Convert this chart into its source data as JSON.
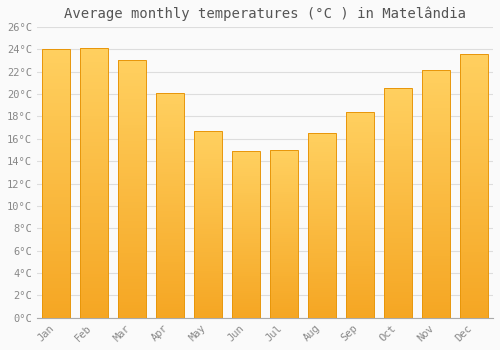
{
  "title": "Average monthly temperatures (°C ) in Matelândia",
  "months": [
    "Jan",
    "Feb",
    "Mar",
    "Apr",
    "May",
    "Jun",
    "Jul",
    "Aug",
    "Sep",
    "Oct",
    "Nov",
    "Dec"
  ],
  "values": [
    24.0,
    24.1,
    23.0,
    20.1,
    16.7,
    14.9,
    15.0,
    16.5,
    18.4,
    20.5,
    22.1,
    23.6
  ],
  "bar_color_bottom": "#F5A623",
  "bar_color_top": "#FFD060",
  "bar_edge_color": "#E8960A",
  "ylim": [
    0,
    26
  ],
  "yticks": [
    0,
    2,
    4,
    6,
    8,
    10,
    12,
    14,
    16,
    18,
    20,
    22,
    24,
    26
  ],
  "ytick_labels": [
    "0°C",
    "2°C",
    "4°C",
    "6°C",
    "8°C",
    "10°C",
    "12°C",
    "14°C",
    "16°C",
    "18°C",
    "20°C",
    "22°C",
    "24°C",
    "26°C"
  ],
  "background_color": "#FAFAFA",
  "grid_color": "#DDDDDD",
  "title_fontsize": 10,
  "tick_fontsize": 7.5,
  "font_color": "#888888",
  "title_color": "#555555",
  "bar_width": 0.75
}
